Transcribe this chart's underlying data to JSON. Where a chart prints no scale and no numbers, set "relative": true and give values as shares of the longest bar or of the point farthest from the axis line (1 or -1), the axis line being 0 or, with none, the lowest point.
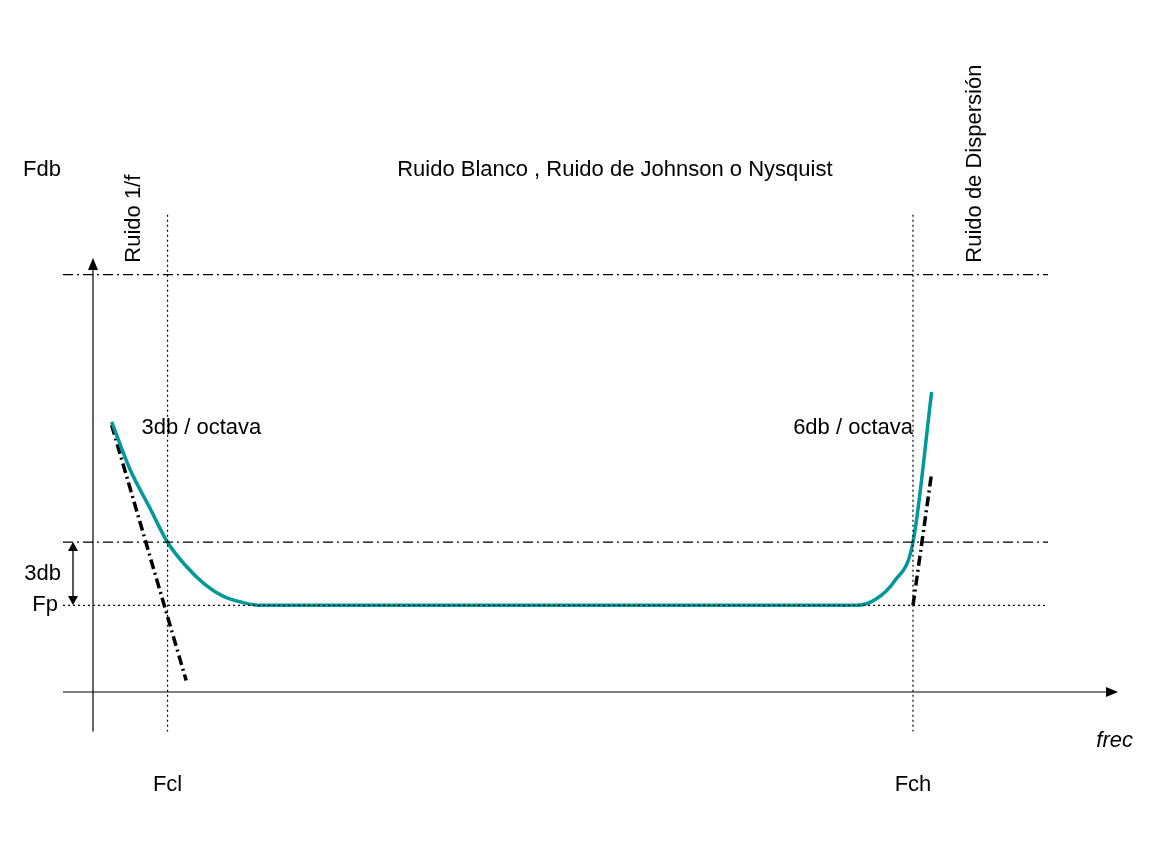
{
  "chart_data": {
    "type": "line",
    "relative": true,
    "xlabel": "frec",
    "categories": [
      null,
      null,
      null,
      null,
      "Fcl",
      null,
      null,
      null,
      null,
      null,
      null,
      null,
      null,
      null,
      null,
      null,
      null,
      null,
      null,
      null,
      null,
      null,
      null,
      null,
      null,
      null,
      null,
      null,
      null,
      null,
      null,
      null,
      null,
      null,
      null,
      null,
      null,
      null,
      null,
      null,
      null,
      null,
      null,
      null,
      "Fch",
      null,
      null,
      null,
      null,
      null,
      null,
      null,
      null,
      null,
      null,
      null
    ],
    "series": [
      {
        "color": "#009999",
        "line_style": "solid",
        "values": [
          null,
          0.9,
          0.74,
          0.62,
          0.5,
          0.42,
          0.36,
          0.32,
          0.3,
          0.29,
          0.29,
          0.29,
          0.29,
          0.29,
          0.29,
          0.29,
          0.29,
          0.29,
          0.29,
          0.29,
          0.29,
          0.29,
          0.29,
          0.29,
          0.29,
          0.29,
          0.29,
          0.29,
          0.29,
          0.29,
          0.29,
          0.29,
          0.29,
          0.29,
          0.29,
          0.29,
          0.29,
          0.29,
          0.29,
          0.29,
          0.29,
          0.29,
          0.31,
          0.37,
          0.5,
          1,
          null,
          null,
          null,
          null,
          null,
          null,
          null,
          null,
          null,
          null
        ]
      },
      {
        "type": "line",
        "color": "#000000",
        "line_style": "dashed",
        "values": [
          null,
          0.89,
          null,
          null,
          null,
          0.04,
          null,
          null,
          null,
          null,
          null,
          null,
          null,
          null,
          null,
          null,
          null,
          null,
          null,
          null,
          null,
          null,
          null,
          null,
          null,
          null,
          null,
          null,
          null,
          null,
          null,
          null,
          null,
          null,
          null,
          null,
          null,
          null,
          null,
          null,
          null,
          null,
          null,
          null,
          null,
          null,
          null,
          null,
          null,
          null,
          null,
          null,
          null,
          null,
          null,
          null
        ]
      },
      {
        "type": "line",
        "color": "#000000",
        "line_style": "dashed",
        "values": [
          null,
          null,
          null,
          null,
          null,
          null,
          null,
          null,
          null,
          null,
          null,
          null,
          null,
          null,
          null,
          null,
          null,
          null,
          null,
          null,
          null,
          null,
          null,
          null,
          null,
          null,
          null,
          null,
          null,
          null,
          null,
          null,
          null,
          null,
          null,
          null,
          null,
          null,
          null,
          null,
          null,
          null,
          null,
          null,
          0.29,
          0.73,
          null,
          null,
          null,
          null,
          null,
          null,
          null,
          null,
          null,
          null
        ]
      }
    ],
    "ref_lines": [
      {
        "axis": "y",
        "value": 1.39,
        "color": "#000000",
        "line_style": "dashed"
      },
      {
        "axis": "y",
        "value": 0.5,
        "color": "#000000",
        "line_style": "dashed"
      },
      {
        "axis": "y",
        "value": 0.29,
        "label": "Fp",
        "color": "#000000",
        "line_style": "dotted"
      },
      {
        "axis": "x",
        "value": "Fcl",
        "color": "#000000",
        "line_style": "dotted"
      },
      {
        "axis": "x",
        "value": "Fch",
        "color": "#000000",
        "line_style": "dotted"
      }
    ],
    "annotations": [
      "Ruido de Dispersión",
      "Fdb",
      "Ruido Blanco , Ruido de Johnson o Nysquist",
      "Ruido 1/f",
      "3db / octava",
      "6db / octava",
      "3db"
    ],
    "grid": false,
    "legend": false,
    "marker": "none"
  }
}
